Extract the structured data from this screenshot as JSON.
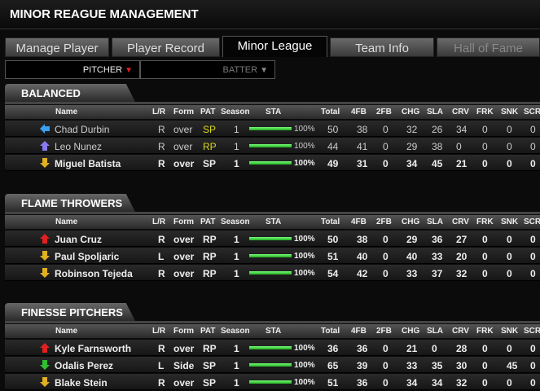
{
  "app": {
    "title": "MINOR REAGUE MANAGEMENT"
  },
  "tabs": [
    {
      "label": "Manage Player",
      "state": "normal"
    },
    {
      "label": "Player Record",
      "state": "normal"
    },
    {
      "label": "Minor League",
      "state": "active"
    },
    {
      "label": "Team Info",
      "state": "normal"
    },
    {
      "label": "Hall of Fame",
      "state": "disabled"
    }
  ],
  "filters": [
    {
      "label": "PITCHER",
      "active": true,
      "color": "#e02020"
    },
    {
      "label": "BATTER",
      "active": false,
      "color": "#888888"
    }
  ],
  "columns": [
    "Name",
    "L/R",
    "Form",
    "PAT",
    "Season",
    "STA",
    "Total",
    "4FB",
    "2FB",
    "CHG",
    "SLA",
    "CRV",
    "FRK",
    "SNK",
    "SCR"
  ],
  "sections": [
    {
      "title": "BALANCED",
      "players": [
        {
          "trend": "left",
          "name": "Chad Durbin",
          "lr": "R",
          "form": "over",
          "pat": "SP",
          "season": "1",
          "sta": 100,
          "sta_label": "100%",
          "stats": [
            "50",
            "38",
            "0",
            "32",
            "26",
            "34",
            "0",
            "0",
            "0"
          ],
          "bold": false
        },
        {
          "trend": "up",
          "name": "Leo Nunez",
          "lr": "R",
          "form": "over",
          "pat": "RP",
          "season": "1",
          "sta": 100,
          "sta_label": "100%",
          "stats": [
            "44",
            "41",
            "0",
            "29",
            "38",
            "0",
            "0",
            "0",
            "0"
          ],
          "bold": false
        },
        {
          "trend": "down",
          "name": "Miguel Batista",
          "lr": "R",
          "form": "over",
          "pat": "SP",
          "season": "1",
          "sta": 100,
          "sta_label": "100%",
          "stats": [
            "49",
            "31",
            "0",
            "34",
            "45",
            "21",
            "0",
            "0",
            "0"
          ],
          "bold": true
        }
      ]
    },
    {
      "title": "FLAME THROWERS",
      "players": [
        {
          "trend": "up-hot",
          "name": "Juan Cruz",
          "lr": "R",
          "form": "over",
          "pat": "RP",
          "season": "1",
          "sta": 100,
          "sta_label": "100%",
          "stats": [
            "50",
            "38",
            "0",
            "29",
            "36",
            "27",
            "0",
            "0",
            "0"
          ],
          "bold": true
        },
        {
          "trend": "down",
          "name": "Paul Spoljaric",
          "lr": "L",
          "form": "over",
          "pat": "RP",
          "season": "1",
          "sta": 100,
          "sta_label": "100%",
          "stats": [
            "51",
            "40",
            "0",
            "40",
            "33",
            "20",
            "0",
            "0",
            "0"
          ],
          "bold": true
        },
        {
          "trend": "down",
          "name": "Robinson Tejeda",
          "lr": "R",
          "form": "over",
          "pat": "RP",
          "season": "1",
          "sta": 100,
          "sta_label": "100%",
          "stats": [
            "54",
            "42",
            "0",
            "33",
            "37",
            "32",
            "0",
            "0",
            "0"
          ],
          "bold": true
        }
      ]
    },
    {
      "title": "FINESSE PITCHERS",
      "players": [
        {
          "trend": "up-hot",
          "name": "Kyle Farnsworth",
          "lr": "R",
          "form": "over",
          "pat": "RP",
          "season": "1",
          "sta": 100,
          "sta_label": "100%",
          "stats": [
            "36",
            "36",
            "0",
            "21",
            "0",
            "28",
            "0",
            "0",
            "0"
          ],
          "bold": true
        },
        {
          "trend": "down-cold",
          "name": "Odalis Perez",
          "lr": "L",
          "form": "Side",
          "pat": "SP",
          "season": "1",
          "sta": 100,
          "sta_label": "100%",
          "stats": [
            "65",
            "39",
            "0",
            "33",
            "35",
            "30",
            "0",
            "45",
            "0"
          ],
          "bold": true
        },
        {
          "trend": "down",
          "name": "Blake Stein",
          "lr": "R",
          "form": "over",
          "pat": "SP",
          "season": "1",
          "sta": 100,
          "sta_label": "100%",
          "stats": [
            "51",
            "36",
            "0",
            "34",
            "34",
            "32",
            "0",
            "0",
            "0"
          ],
          "bold": true
        }
      ]
    }
  ],
  "trend_colors": {
    "left": "#3aa0f0",
    "up": "#8a7af0",
    "down": "#e0b020",
    "up-hot": "#e02020",
    "down-cold": "#30c030"
  }
}
